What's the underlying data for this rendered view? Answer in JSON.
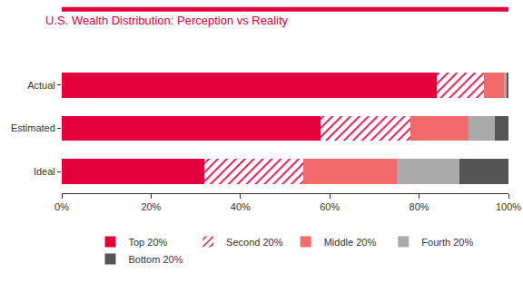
{
  "chart_data": {
    "type": "bar",
    "title": "U.S. Wealth Distribution: Perception vs Reality",
    "orientation": "horizontal",
    "stacked": true,
    "grid": false,
    "legend": "bottom",
    "categories": [
      "Actual",
      "Estimated",
      "Ideal"
    ],
    "series": [
      {
        "name": "Top 20%",
        "color": "#e4003b",
        "values": [
          84,
          58,
          32
        ]
      },
      {
        "name": "Second 20%",
        "color": "#e4003b",
        "marker": "hatched",
        "values": [
          10.5,
          20,
          22
        ]
      },
      {
        "name": "Middle 20%",
        "color": "#f26b6b",
        "values": [
          4.5,
          13,
          21
        ]
      },
      {
        "name": "Fourth 20%",
        "color": "#aaaaaa",
        "values": [
          0.5,
          6,
          14
        ]
      },
      {
        "name": "Bottom 20%",
        "color": "#555555",
        "values": [
          0.5,
          3,
          11
        ]
      }
    ],
    "xlim": [
      0,
      100
    ],
    "xticks": [
      {
        "value": 0,
        "label": "0%"
      },
      {
        "value": 20,
        "label": "20%"
      },
      {
        "value": 40,
        "label": "40%"
      },
      {
        "value": 60,
        "label": "60%"
      },
      {
        "value": 80,
        "label": "80%"
      },
      {
        "value": 100,
        "label": "100%"
      }
    ]
  }
}
